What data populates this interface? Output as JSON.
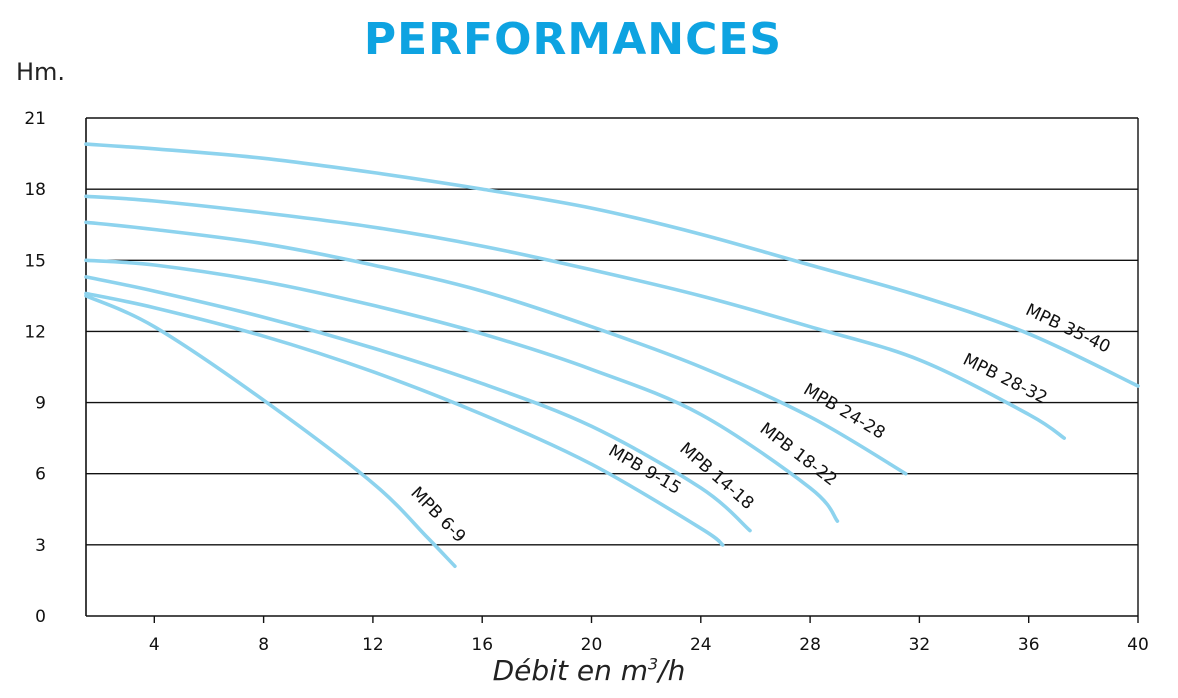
{
  "title": "PERFORMANCES",
  "colors": {
    "title": "#0ea3e1",
    "curve": "#8dd3ee",
    "grid": "#111111"
  },
  "chart_data": {
    "type": "line",
    "title": "PERFORMANCES",
    "ylabel": "Hm.",
    "xlabel_prefix": "Débit en m",
    "xlabel_sup": "3",
    "xlabel_suffix": "/h",
    "xlim": [
      1.5,
      40
    ],
    "ylim": [
      0,
      21
    ],
    "xticks": [
      4,
      8,
      12,
      16,
      20,
      24,
      28,
      32,
      36,
      40
    ],
    "yticks": [
      0,
      3,
      6,
      9,
      12,
      15,
      18,
      21
    ],
    "grid": "horizontal",
    "series": [
      {
        "name": "MPB 6-9",
        "x": [
          1.5,
          4,
          8,
          12,
          14,
          15
        ],
        "y": [
          13.5,
          12.2,
          9.1,
          5.6,
          3.3,
          2.1
        ]
      },
      {
        "name": "MPB 9-15",
        "x": [
          1.5,
          4,
          8,
          12,
          16,
          20,
          24,
          24.8
        ],
        "y": [
          13.6,
          13.0,
          11.8,
          10.3,
          8.5,
          6.4,
          3.7,
          3.0
        ]
      },
      {
        "name": "MPB 14-18",
        "x": [
          1.5,
          4,
          8,
          12,
          16,
          20,
          24,
          25.8
        ],
        "y": [
          14.3,
          13.7,
          12.6,
          11.3,
          9.8,
          8.0,
          5.4,
          3.6
        ]
      },
      {
        "name": "MPB 18-22",
        "x": [
          1.5,
          4,
          8,
          12,
          16,
          20,
          24,
          28,
          29
        ],
        "y": [
          15.0,
          14.8,
          14.1,
          13.1,
          11.9,
          10.4,
          8.5,
          5.4,
          4.0
        ]
      },
      {
        "name": "MPB 24-28",
        "x": [
          1.5,
          4,
          8,
          12,
          16,
          20,
          24,
          28,
          31.5
        ],
        "y": [
          16.6,
          16.3,
          15.7,
          14.8,
          13.7,
          12.2,
          10.5,
          8.4,
          6.0
        ]
      },
      {
        "name": "MPB 28-32",
        "x": [
          1.5,
          4,
          8,
          12,
          16,
          20,
          24,
          28,
          32,
          36,
          37.3
        ],
        "y": [
          17.7,
          17.5,
          17.0,
          16.4,
          15.6,
          14.6,
          13.5,
          12.2,
          10.8,
          8.5,
          7.5
        ]
      },
      {
        "name": "MPB 35-40",
        "x": [
          1.5,
          4,
          8,
          12,
          16,
          20,
          24,
          28,
          32,
          36,
          40
        ],
        "y": [
          19.9,
          19.7,
          19.3,
          18.7,
          18.0,
          17.2,
          16.1,
          14.8,
          13.5,
          11.9,
          9.7
        ]
      }
    ]
  }
}
